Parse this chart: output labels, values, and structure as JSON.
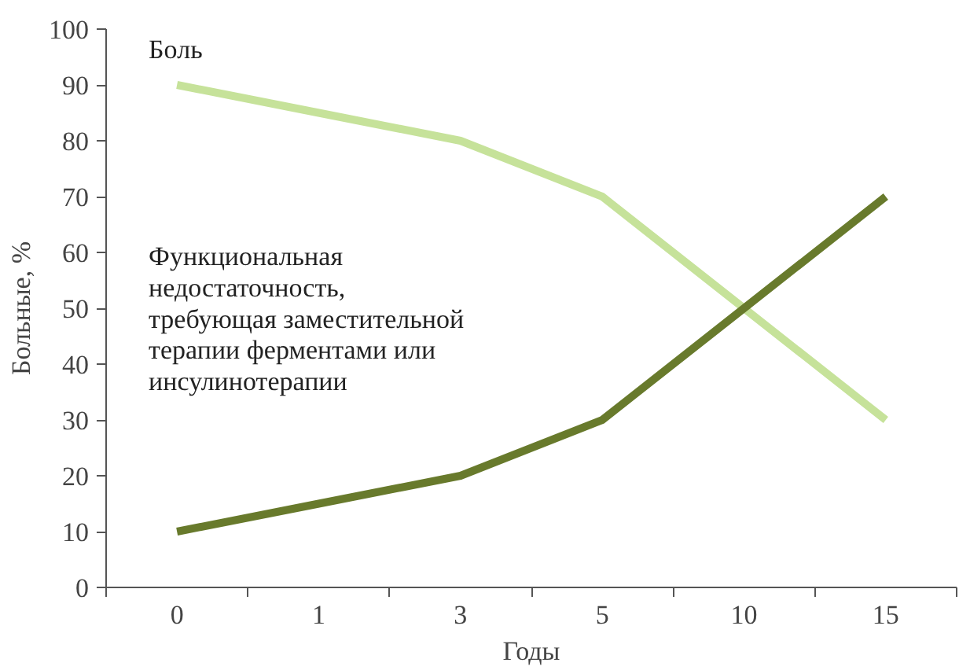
{
  "chart_data": {
    "type": "line",
    "xlabel": "Годы",
    "ylabel": "Больные, %",
    "categories": [
      "0",
      "1",
      "3",
      "5",
      "10",
      "15"
    ],
    "series": [
      {
        "name": "Боль",
        "color": "#c6e29a",
        "values": [
          90,
          85,
          80,
          70,
          50,
          30
        ]
      },
      {
        "name": "Функциональная\nнедостаточность,\nтребующая заместительной\nтерапии ферментами или\nинсулинотерапии",
        "color": "#687a2c",
        "values": [
          10,
          15,
          20,
          30,
          50,
          70
        ]
      }
    ],
    "ylim": [
      0,
      100
    ],
    "yticks": [
      0,
      10,
      20,
      30,
      40,
      50,
      60,
      70,
      80,
      90,
      100
    ],
    "grid": false,
    "legend": false,
    "marker": "none",
    "line_style": "solid"
  }
}
